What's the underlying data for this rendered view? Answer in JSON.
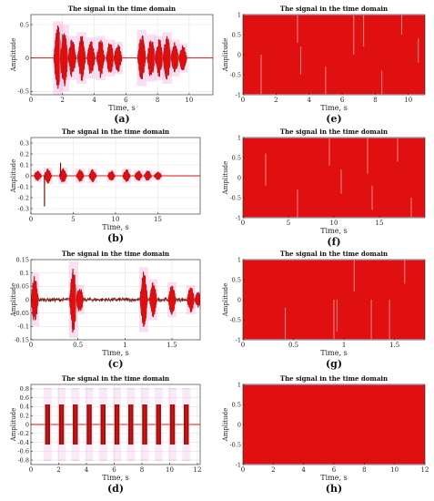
{
  "chart_data": [
    {
      "id": "a",
      "panel_label": "(a)",
      "type": "line",
      "title": "The signal in the time domain",
      "xlabel": "Time, s",
      "ylabel": "Amplitude",
      "xlim": [
        0,
        11.5
      ],
      "ylim": [
        -0.55,
        0.65
      ],
      "xticks": [
        0,
        2,
        4,
        6,
        8,
        10
      ],
      "yticks": [
        -0.5,
        0,
        0.5
      ],
      "grid": true,
      "series": [
        {
          "bursts": [
            {
              "t": 1.7,
              "amp": 0.5
            },
            {
              "t": 2.1,
              "amp": 0.45
            },
            {
              "t": 2.6,
              "amp": 0.3
            },
            {
              "t": 3.2,
              "amp": 0.35
            },
            {
              "t": 3.8,
              "amp": 0.28
            },
            {
              "t": 4.4,
              "amp": 0.3
            },
            {
              "t": 5.0,
              "amp": 0.25
            },
            {
              "t": 5.5,
              "amp": 0.22
            },
            {
              "t": 7.0,
              "amp": 0.38
            },
            {
              "t": 7.6,
              "amp": 0.32
            },
            {
              "t": 8.1,
              "amp": 0.3
            },
            {
              "t": 8.6,
              "amp": 0.35
            },
            {
              "t": 9.1,
              "amp": 0.25
            },
            {
              "t": 9.6,
              "amp": 0.2
            }
          ]
        }
      ]
    },
    {
      "id": "b",
      "panel_label": "(b)",
      "type": "line",
      "title": "The signal in the time domain",
      "xlabel": "Time, s",
      "ylabel": "Amplitude",
      "xlim": [
        0,
        20
      ],
      "ylim": [
        -0.35,
        0.35
      ],
      "xticks": [
        0,
        5,
        10,
        15
      ],
      "yticks": [
        -0.3,
        -0.2,
        -0.1,
        0,
        0.1,
        0.2,
        0.3
      ],
      "grid": true,
      "series": [
        {
          "bursts": [
            {
              "t": 0.8,
              "amp": 0.05
            },
            {
              "t": 2.0,
              "amp": 0.07
            },
            {
              "t": 3.8,
              "amp": 0.07
            },
            {
              "t": 5.8,
              "amp": 0.06
            },
            {
              "t": 7.3,
              "amp": 0.06
            },
            {
              "t": 9.5,
              "amp": 0.05
            },
            {
              "t": 11.3,
              "amp": 0.06
            },
            {
              "t": 12.7,
              "amp": 0.05
            },
            {
              "t": 13.8,
              "amp": 0.05
            },
            {
              "t": 15.0,
              "amp": 0.04
            }
          ],
          "spikes": [
            {
              "t": 1.6,
              "amp": -0.28
            },
            {
              "t": 3.5,
              "amp": 0.12
            }
          ]
        }
      ]
    },
    {
      "id": "c",
      "panel_label": "(c)",
      "type": "line",
      "title": "The signal in the time domain",
      "xlabel": "Time, s",
      "ylabel": "Amplitude",
      "xlim": [
        0,
        1.8
      ],
      "ylim": [
        -0.15,
        0.15
      ],
      "xticks": [
        0,
        0.5,
        1,
        1.5
      ],
      "yticks": [
        -0.15,
        -0.1,
        -0.05,
        0,
        0.05,
        0.1,
        0.15
      ],
      "grid": true,
      "series": [
        {
          "noise_amp": 0.008,
          "bursts": [
            {
              "t": 0.04,
              "amp": 0.09
            },
            {
              "t": 0.45,
              "amp": 0.13
            },
            {
              "t": 0.52,
              "amp": 0.05
            },
            {
              "t": 1.2,
              "amp": 0.11
            },
            {
              "t": 1.3,
              "amp": 0.07
            },
            {
              "t": 1.5,
              "amp": 0.06
            },
            {
              "t": 1.7,
              "amp": 0.05
            },
            {
              "t": 1.78,
              "amp": 0.03
            }
          ]
        }
      ]
    },
    {
      "id": "d",
      "panel_label": "(d)",
      "type": "line",
      "title": "The signal in the time domain",
      "xlabel": "Time, s",
      "ylabel": "Amplitude",
      "xlim": [
        0,
        12.2
      ],
      "ylim": [
        -0.9,
        0.9
      ],
      "xticks": [
        0,
        2,
        4,
        6,
        8,
        10,
        12
      ],
      "yticks": [
        -0.8,
        -0.6,
        -0.4,
        -0.2,
        0,
        0.2,
        0.4,
        0.6,
        0.8
      ],
      "grid": true,
      "series": [
        {
          "blocks": [
            {
              "t": 1.2,
              "amp": 0.45
            },
            {
              "t": 2.2,
              "amp": 0.45
            },
            {
              "t": 3.2,
              "amp": 0.45
            },
            {
              "t": 4.2,
              "amp": 0.45
            },
            {
              "t": 5.2,
              "amp": 0.45
            },
            {
              "t": 6.2,
              "amp": 0.45
            },
            {
              "t": 7.2,
              "amp": 0.45
            },
            {
              "t": 8.2,
              "amp": 0.45
            },
            {
              "t": 9.2,
              "amp": 0.45
            },
            {
              "t": 10.2,
              "amp": 0.45
            },
            {
              "t": 11.2,
              "amp": 0.45
            }
          ],
          "block_width": 0.35
        }
      ]
    },
    {
      "id": "e",
      "panel_label": "(e)",
      "type": "area",
      "title": "The signal in the time domain",
      "xlabel": "Time, s",
      "ylabel": "Amplitude",
      "xlim": [
        0,
        11
      ],
      "ylim": [
        -1,
        1
      ],
      "xticks": [
        0,
        2,
        4,
        6,
        8,
        10
      ],
      "yticks": [
        -1,
        -0.5,
        0,
        0.5,
        1
      ],
      "grid": true,
      "series": [
        {
          "fill_range": [
            -1,
            1
          ],
          "gaps": [
            {
              "t": 1.1,
              "y0": -1,
              "y1": 0.0
            },
            {
              "t": 3.3,
              "y0": 0.3,
              "y1": 1
            },
            {
              "t": 3.5,
              "y0": -0.5,
              "y1": 0.2
            },
            {
              "t": 5.0,
              "y0": -1,
              "y1": -0.3
            },
            {
              "t": 6.7,
              "y0": 0.0,
              "y1": 1
            },
            {
              "t": 7.3,
              "y0": 0.2,
              "y1": 1
            },
            {
              "t": 8.4,
              "y0": -1,
              "y1": -0.4
            },
            {
              "t": 9.6,
              "y0": 0.5,
              "y1": 1
            },
            {
              "t": 10.6,
              "y0": -0.2,
              "y1": 0.4
            }
          ]
        }
      ]
    },
    {
      "id": "f",
      "panel_label": "(f)",
      "type": "area",
      "title": "The signal in the time domain",
      "xlabel": "Time, s",
      "ylabel": "Amplitude",
      "xlim": [
        0,
        20
      ],
      "ylim": [
        -1,
        1
      ],
      "xticks": [
        0,
        5,
        10,
        15
      ],
      "yticks": [
        -1,
        -0.5,
        0,
        0.5,
        1
      ],
      "grid": true,
      "series": [
        {
          "fill_range": [
            -1,
            1
          ],
          "gaps": [
            {
              "t": 2.5,
              "y0": -0.2,
              "y1": 0.6
            },
            {
              "t": 6.0,
              "y0": -1,
              "y1": -0.3
            },
            {
              "t": 9.5,
              "y0": 0.3,
              "y1": 1
            },
            {
              "t": 10.8,
              "y0": -0.4,
              "y1": 0.2
            },
            {
              "t": 13.7,
              "y0": 0.1,
              "y1": 1
            },
            {
              "t": 14.2,
              "y0": -0.8,
              "y1": -0.2
            },
            {
              "t": 17.0,
              "y0": 0.4,
              "y1": 1
            },
            {
              "t": 18.5,
              "y0": -1,
              "y1": -0.5
            }
          ]
        }
      ]
    },
    {
      "id": "g",
      "panel_label": "(g)",
      "type": "area",
      "title": "The signal in the time domain",
      "xlabel": "Time, s",
      "ylabel": "Amplitude",
      "xlim": [
        0,
        1.8
      ],
      "ylim": [
        -1,
        1
      ],
      "xticks": [
        0,
        0.5,
        1,
        1.5
      ],
      "yticks": [
        -1,
        -0.5,
        0,
        0.5,
        1
      ],
      "grid": true,
      "series": [
        {
          "fill_range": [
            -1,
            1
          ],
          "gaps": [
            {
              "t": 0.42,
              "y0": -1,
              "y1": -0.2
            },
            {
              "t": 0.9,
              "y0": -1,
              "y1": 0.0
            },
            {
              "t": 0.93,
              "y0": -0.8,
              "y1": 0.0
            },
            {
              "t": 1.1,
              "y0": 0.2,
              "y1": 1
            },
            {
              "t": 1.27,
              "y0": -1,
              "y1": 0.0
            },
            {
              "t": 1.45,
              "y0": -1,
              "y1": 0.0
            },
            {
              "t": 1.6,
              "y0": 0.4,
              "y1": 1
            }
          ]
        }
      ]
    },
    {
      "id": "h",
      "panel_label": "(h)",
      "type": "area",
      "title": "The signal in the time domain",
      "xlabel": "Time, s",
      "ylabel": "Amplitude",
      "xlim": [
        0,
        12
      ],
      "ylim": [
        -1,
        1
      ],
      "xticks": [
        0,
        2,
        4,
        6,
        8,
        10,
        12
      ],
      "yticks": [
        -1,
        -0.5,
        0,
        0.5,
        1
      ],
      "grid": true,
      "series": [
        {
          "fill_range": [
            -1,
            1
          ],
          "gaps": []
        }
      ]
    }
  ],
  "colors": {
    "signal": "#e01010",
    "signal_dark": "#6a1a0e",
    "halo": "#f4b6e4",
    "grid": "#e4e4e4",
    "axis": "#222222",
    "cyan_guide": "#9fe6ef"
  }
}
